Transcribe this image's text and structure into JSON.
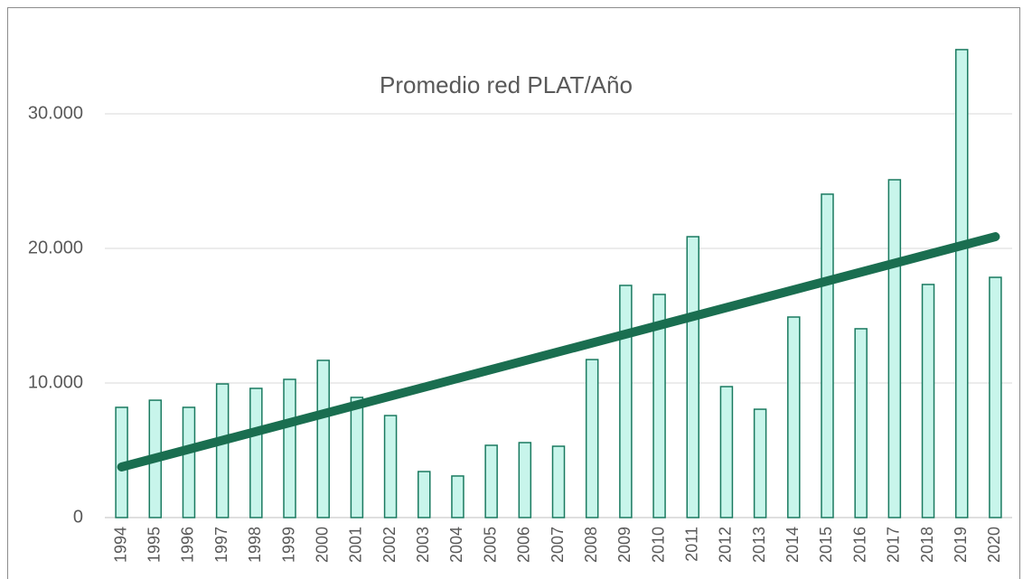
{
  "chart_data": {
    "type": "bar",
    "title": "Promedio red PLAT/Año",
    "categories": [
      "1994",
      "1995",
      "1996",
      "1997",
      "1998",
      "1999",
      "2000",
      "2001",
      "2002",
      "2003",
      "2004",
      "2005",
      "2006",
      "2007",
      "2008",
      "2009",
      "2010",
      "2011",
      "2012",
      "2013",
      "2014",
      "2015",
      "2016",
      "2017",
      "2018",
      "2019",
      "2020"
    ],
    "values": [
      8190,
      8720,
      8190,
      9930,
      9600,
      10270,
      11680,
      8930,
      7580,
      3420,
      3090,
      5370,
      5570,
      5300,
      11740,
      17250,
      16580,
      20870,
      9730,
      8050,
      14900,
      24030,
      14030,
      25100,
      17320,
      34770,
      17850
    ],
    "color": "#c8f5eb",
    "edge_color": "#1a7a60",
    "trendline": {
      "color": "#1a6e50",
      "values": [
        3760,
        20870
      ]
    },
    "ylim": [
      0,
      35000
    ],
    "yticks": [
      0,
      {
        "value": 10000,
        "label": "10.000"
      },
      {
        "value": 20000,
        "label": "20.000"
      },
      {
        "value": 30000,
        "label": "30.000"
      }
    ],
    "grid": true
  }
}
